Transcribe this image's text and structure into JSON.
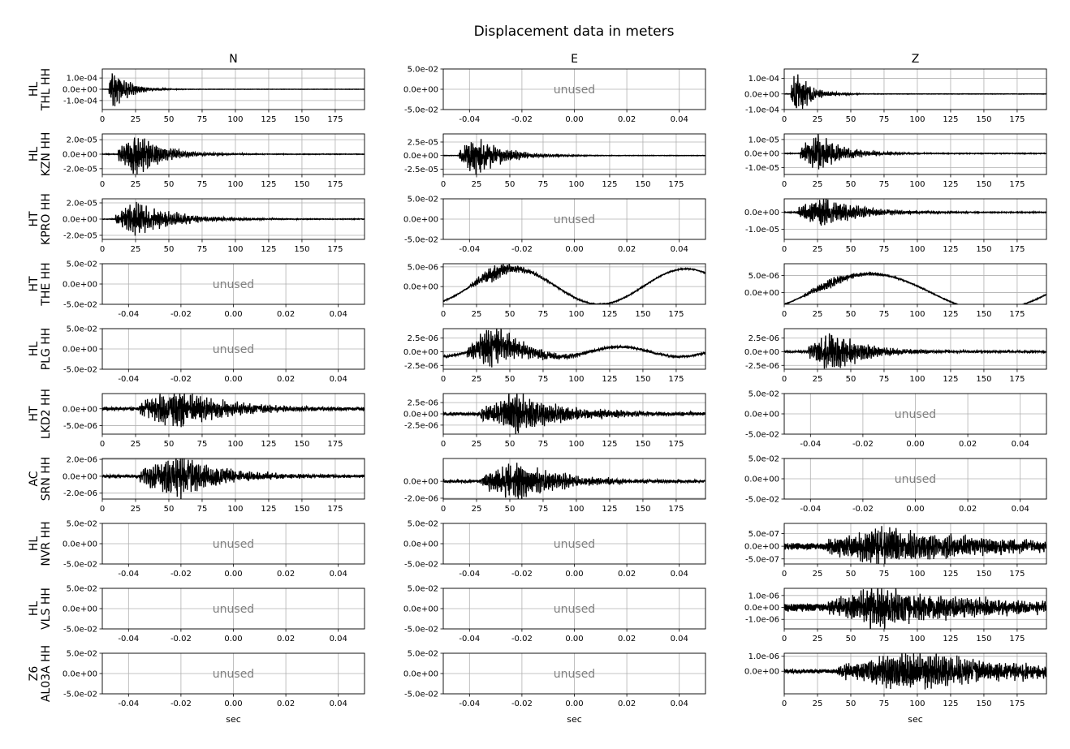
{
  "chart_data": {
    "type": "line",
    "title": "Displacement data in meters",
    "columns": [
      "N",
      "E",
      "Z"
    ],
    "xlabel": "sec",
    "unused_label": "unused",
    "trace_color": "#000000",
    "grid": true,
    "time_ticks": [
      0,
      25,
      50,
      75,
      100,
      125,
      150,
      175
    ],
    "time_range": [
      0,
      197
    ],
    "unused_xticks": [
      "-0.04",
      "-0.02",
      "0.00",
      "0.02",
      "0.04"
    ],
    "unused_yticks": [
      "5.0e-02",
      "0.0e+00",
      "-5.0e-02"
    ],
    "rows": [
      {
        "label": "HL\nTHL HH",
        "panels": [
          {
            "unused": false,
            "ylim": [
              -0.00018,
              0.00018
            ],
            "yticks": [
              0.0001,
              0,
              -0.0001
            ],
            "ytick_labels": [
              "1.0e-04",
              "0.0e+00",
              "-1.0e-04"
            ],
            "onset": 5,
            "peak": 8,
            "amp": 0.00018,
            "decay": 0.09,
            "noise": 1e-06,
            "drift": 0,
            "drift_period": 100
          },
          {
            "unused": true
          },
          {
            "unused": false,
            "ylim": [
              -0.0001,
              0.00016
            ],
            "yticks": [
              0.0001,
              0,
              -0.0001
            ],
            "ytick_labels": [
              "1.0e-04",
              "0.0e+00",
              "-1.0e-04"
            ],
            "onset": 5,
            "peak": 8,
            "amp": 0.00015,
            "decay": 0.09,
            "noise": 1e-06,
            "drift": 0,
            "drift_period": 100
          }
        ]
      },
      {
        "label": "HL\nKZN HH",
        "panels": [
          {
            "unused": false,
            "ylim": [
              -2.8e-05,
              2.8e-05
            ],
            "yticks": [
              2e-05,
              0,
              -2e-05
            ],
            "ytick_labels": [
              "2.0e-05",
              "0.0e+00",
              "-2.0e-05"
            ],
            "onset": 12,
            "peak": 25,
            "amp": 2.7e-05,
            "decay": 0.05,
            "noise": 3e-07,
            "drift": 0,
            "drift_period": 100
          },
          {
            "unused": false,
            "ylim": [
              -3.5e-05,
              4e-05
            ],
            "yticks": [
              2.5e-05,
              0,
              -2.5e-05
            ],
            "ytick_labels": [
              "2.5e-05",
              "0.0e+00",
              "-2.5e-05"
            ],
            "onset": 12,
            "peak": 25,
            "amp": 3.5e-05,
            "decay": 0.05,
            "noise": 3e-07,
            "drift": 0,
            "drift_period": 100
          },
          {
            "unused": false,
            "ylim": [
              -1.5e-05,
              1.4e-05
            ],
            "yticks": [
              1e-05,
              0,
              -1e-05
            ],
            "ytick_labels": [
              "1.0e-05",
              "0.0e+00",
              "-1.0e-05"
            ],
            "onset": 12,
            "peak": 25,
            "amp": 1.3e-05,
            "decay": 0.05,
            "noise": 2e-07,
            "drift": 0,
            "drift_period": 100
          }
        ]
      },
      {
        "label": "HT\nKPRO HH",
        "panels": [
          {
            "unused": false,
            "ylim": [
              -2.5e-05,
              2.5e-05
            ],
            "yticks": [
              2e-05,
              0,
              -2e-05
            ],
            "ytick_labels": [
              "2.0e-05",
              "0.0e+00",
              "-2.0e-05"
            ],
            "onset": 10,
            "peak": 25,
            "amp": 2e-05,
            "decay": 0.035,
            "noise": 3e-07,
            "drift": 0,
            "drift_period": 100
          },
          {
            "unused": true
          },
          {
            "unused": false,
            "ylim": [
              -1.6e-05,
              8e-06
            ],
            "yticks": [
              0,
              -1e-05
            ],
            "ytick_labels": [
              "0.0e+00",
              "-1.0e-05"
            ],
            "onset": 10,
            "peak": 27,
            "amp": 9e-06,
            "decay": 0.035,
            "noise": 2e-07,
            "drift": 0,
            "drift_period": 100
          }
        ]
      },
      {
        "label": "HT\nTHE HH",
        "panels": [
          {
            "unused": true
          },
          {
            "unused": false,
            "ylim": [
              -4.5e-06,
              5.8e-06
            ],
            "yticks": [
              5e-06,
              0
            ],
            "ytick_labels": [
              "5.0e-06",
              "0.0e+00"
            ],
            "onset": 20,
            "peak": 38,
            "amp": 2e-06,
            "decay": 0.05,
            "noise": 1e-07,
            "drift": 4.5e-06,
            "drift_period": 130
          },
          {
            "unused": false,
            "ylim": [
              -3.5e-06,
              8.5e-06
            ],
            "yticks": [
              5e-06,
              0
            ],
            "ytick_labels": [
              "5.0e-06",
              "0.0e+00"
            ],
            "onset": 15,
            "peak": 35,
            "amp": 1.5e-06,
            "decay": 0.05,
            "noise": 1e-07,
            "drift": 5.5e-06,
            "drift_period": 180
          }
        ]
      },
      {
        "label": "HL\nPLG HH",
        "panels": [
          {
            "unused": true
          },
          {
            "unused": false,
            "ylim": [
              -3.2e-06,
              4.2e-06
            ],
            "yticks": [
              2.5e-06,
              0,
              -2.5e-06
            ],
            "ytick_labels": [
              "2.5e-06",
              "0.0e+00",
              "-2.5e-06"
            ],
            "onset": 18,
            "peak": 38,
            "amp": 3.5e-06,
            "decay": 0.04,
            "noise": 1.5e-07,
            "drift": 9e-07,
            "drift_period": 90
          },
          {
            "unused": false,
            "ylim": [
              -3.2e-06,
              4.2e-06
            ],
            "yticks": [
              2.5e-06,
              0,
              -2.5e-06
            ],
            "ytick_labels": [
              "2.5e-06",
              "0.0e+00",
              "-2.5e-06"
            ],
            "onset": 18,
            "peak": 38,
            "amp": 3.5e-06,
            "decay": 0.04,
            "noise": 1.5e-07,
            "drift": 0,
            "drift_period": 100
          }
        ]
      },
      {
        "label": "HT\nLKD2 HH",
        "panels": [
          {
            "unused": false,
            "ylim": [
              -7.5e-06,
              4.5e-06
            ],
            "yticks": [
              0,
              -5e-06
            ],
            "ytick_labels": [
              "0.0e+00",
              "-5.0e-06"
            ],
            "onset": 28,
            "peak": 55,
            "amp": 5.5e-06,
            "decay": 0.025,
            "noise": 4e-07,
            "drift": 0,
            "drift_period": 100
          },
          {
            "unused": false,
            "ylim": [
              -4.5e-06,
              4.5e-06
            ],
            "yticks": [
              2.5e-06,
              0,
              -2.5e-06
            ],
            "ytick_labels": [
              "2.5e-06",
              "0.0e+00",
              "-2.5e-06"
            ],
            "onset": 28,
            "peak": 55,
            "amp": 4.2e-06,
            "decay": 0.025,
            "noise": 3e-07,
            "drift": 0,
            "drift_period": 100
          },
          {
            "unused": true
          }
        ]
      },
      {
        "label": "AC\nSRN HH",
        "panels": [
          {
            "unused": false,
            "ylim": [
              -2.7e-06,
              2.1e-06
            ],
            "yticks": [
              2e-06,
              0,
              -2e-06
            ],
            "ytick_labels": [
              "2.0e-06",
              "0.0e+00",
              "-2.0e-06"
            ],
            "onset": 28,
            "peak": 57,
            "amp": 2.5e-06,
            "decay": 0.03,
            "noise": 1.5e-07,
            "drift": 0,
            "drift_period": 100
          },
          {
            "unused": false,
            "ylim": [
              -2.1e-06,
              2.7e-06
            ],
            "yticks": [
              0,
              -2e-06
            ],
            "ytick_labels": [
              "0.0e+00",
              "-2.0e-06"
            ],
            "onset": 28,
            "peak": 57,
            "amp": 2.2e-06,
            "decay": 0.03,
            "noise": 1.5e-07,
            "drift": 0,
            "drift_period": 100
          },
          {
            "unused": true
          }
        ]
      },
      {
        "label": "HL\nNVR HH",
        "panels": [
          {
            "unused": true
          },
          {
            "unused": true
          },
          {
            "unused": false,
            "ylim": [
              -7e-07,
              9e-07
            ],
            "yticks": [
              5e-07,
              0,
              -5e-07
            ],
            "ytick_labels": [
              "5.0e-07",
              "0.0e+00",
              "-5.0e-07"
            ],
            "onset": 32,
            "peak": 70,
            "amp": 7e-07,
            "decay": 0.012,
            "noise": 1.2e-07,
            "drift": 0,
            "drift_period": 100
          }
        ]
      },
      {
        "label": "HL\nVLS HH",
        "panels": [
          {
            "unused": true
          },
          {
            "unused": true
          },
          {
            "unused": false,
            "ylim": [
              -1.8e-06,
              1.6e-06
            ],
            "yticks": [
              1e-06,
              0,
              -1e-06
            ],
            "ytick_labels": [
              "1.0e-06",
              "0.0e+00",
              "-1.0e-06"
            ],
            "onset": 33,
            "peak": 65,
            "amp": 1.5e-06,
            "decay": 0.012,
            "noise": 3e-07,
            "drift": 0,
            "drift_period": 100
          }
        ]
      },
      {
        "label": "Z6\nAL03A HH",
        "panels": [
          {
            "unused": true
          },
          {
            "unused": true
          },
          {
            "unused": false,
            "ylim": [
              -1.5e-06,
              1.2e-06
            ],
            "yticks": [
              1e-06,
              0
            ],
            "ytick_labels": [
              "1.0e-06",
              "0.0e+00"
            ],
            "onset": 40,
            "peak": 90,
            "amp": 1.2e-06,
            "decay": 0.01,
            "noise": 1.2e-07,
            "drift": 0,
            "drift_period": 100
          }
        ]
      }
    ]
  }
}
